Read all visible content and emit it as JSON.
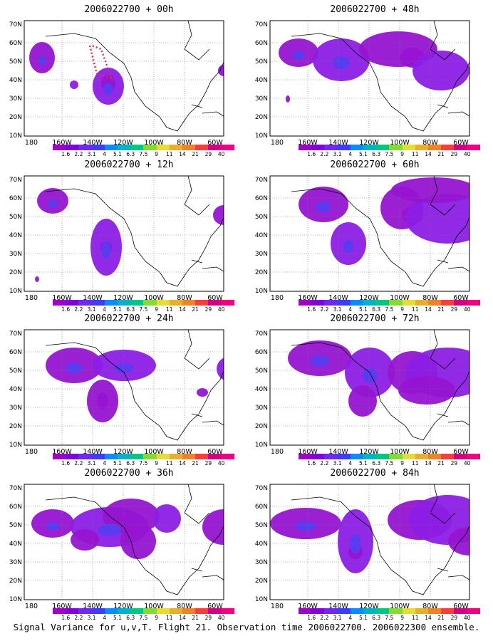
{
  "panels": [
    {
      "title": "2006022700 + 00h"
    },
    {
      "title": "2006022700 + 48h"
    },
    {
      "title": "2006022700 + 12h"
    },
    {
      "title": "2006022700 + 60h"
    },
    {
      "title": "2006022700 + 24h"
    },
    {
      "title": "2006022700 + 72h"
    },
    {
      "title": "2006022700 + 36h"
    },
    {
      "title": "2006022700 + 84h"
    }
  ],
  "lat_labels": [
    "70N",
    "60N",
    "50N",
    "40N",
    "30N",
    "20N",
    "10N"
  ],
  "lon_labels": [
    "180",
    "160W",
    "140W",
    "120W",
    "100W",
    "80W",
    "60W"
  ],
  "colorbar": {
    "labels": [
      "1.6",
      "2.2",
      "3.1",
      "4",
      "5.1",
      "6.3",
      "7.5",
      "9",
      "11",
      "14",
      "21",
      "29",
      "40"
    ],
    "colors": [
      "#a000c8",
      "#8200dc",
      "#6e28f0",
      "#3c3cff",
      "#0a8cff",
      "#00b4c8",
      "#00c882",
      "#82dc32",
      "#e6dc32",
      "#e6af2d",
      "#f08228",
      "#fa3c3c",
      "#d20082",
      "#f00082"
    ]
  },
  "caption": "Signal Variance for u,v,T. Flight 21. Observation time 2006022700. 2006022300 ensemble."
}
